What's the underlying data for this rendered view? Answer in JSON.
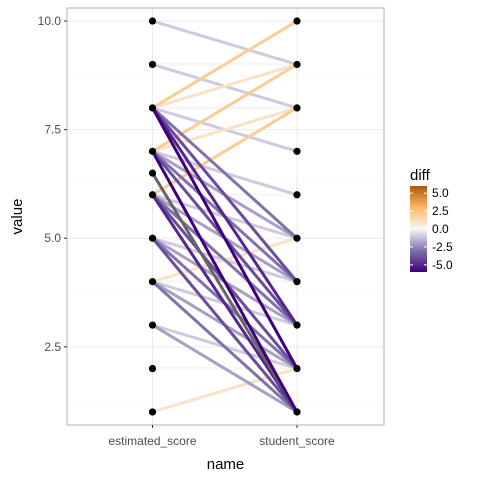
{
  "chart_data": {
    "type": "line",
    "subtype": "slopegraph",
    "title": "",
    "xlabel": "name",
    "ylabel": "value",
    "categories": [
      "estimated_score",
      "student_score"
    ],
    "ylim": [
      0.7,
      10.3
    ],
    "yticks": [
      2.5,
      5.0,
      7.5,
      10.0
    ],
    "ytick_labels": [
      "2.5",
      "5.0",
      "7.5",
      "10.0"
    ],
    "grid": true,
    "legend": {
      "title": "diff",
      "position": "right",
      "type": "colorbar",
      "range": [
        -6,
        6
      ],
      "ticks": [
        5.0,
        2.5,
        0.0,
        -2.5,
        -5.0
      ],
      "tick_labels": [
        "5.0",
        "2.5",
        "0.0",
        "-2.5",
        "-5.0"
      ],
      "colors": {
        "neg_strong": "#3f007d",
        "neg_mid": "#8073ac",
        "neutral": "#f7f7f7",
        "pos_mid": "#fdb863",
        "pos_strong": "#b35806"
      }
    },
    "highlight_color": "#666666",
    "pairs": [
      {
        "estimated": 10,
        "student": 9
      },
      {
        "estimated": 9,
        "student": 9
      },
      {
        "estimated": 9,
        "student": 8
      },
      {
        "estimated": 8,
        "student": 10
      },
      {
        "estimated": 8,
        "student": 9
      },
      {
        "estimated": 8,
        "student": 8
      },
      {
        "estimated": 8,
        "student": 7
      },
      {
        "estimated": 8,
        "student": 4
      },
      {
        "estimated": 8,
        "student": 3
      },
      {
        "estimated": 8,
        "student": 2
      },
      {
        "estimated": 8,
        "student": 5
      },
      {
        "estimated": 7,
        "student": 9
      },
      {
        "estimated": 7,
        "student": 8
      },
      {
        "estimated": 7,
        "student": 6
      },
      {
        "estimated": 7,
        "student": 5
      },
      {
        "estimated": 7,
        "student": 4
      },
      {
        "estimated": 7,
        "student": 3
      },
      {
        "estimated": 7,
        "student": 1
      },
      {
        "estimated": 6.5,
        "student": 1,
        "highlight": true
      },
      {
        "estimated": 6,
        "student": 8
      },
      {
        "estimated": 6,
        "student": 6
      },
      {
        "estimated": 6,
        "student": 5
      },
      {
        "estimated": 6,
        "student": 4
      },
      {
        "estimated": 6,
        "student": 3
      },
      {
        "estimated": 6,
        "student": 2
      },
      {
        "estimated": 6,
        "student": 1
      },
      {
        "estimated": 5,
        "student": 5
      },
      {
        "estimated": 5,
        "student": 4
      },
      {
        "estimated": 5,
        "student": 3
      },
      {
        "estimated": 5,
        "student": 2
      },
      {
        "estimated": 5,
        "student": 1
      },
      {
        "estimated": 4,
        "student": 5
      },
      {
        "estimated": 4,
        "student": 4
      },
      {
        "estimated": 4,
        "student": 3
      },
      {
        "estimated": 4,
        "student": 2
      },
      {
        "estimated": 4,
        "student": 1
      },
      {
        "estimated": 3,
        "student": 2
      },
      {
        "estimated": 3,
        "student": 1
      },
      {
        "estimated": 2,
        "student": 2
      },
      {
        "estimated": 1,
        "student": 2
      }
    ],
    "points": {
      "estimated_score": [
        10,
        9,
        8,
        7,
        6.5,
        6,
        5,
        4,
        3,
        2,
        1
      ],
      "student_score": [
        10,
        9,
        8,
        7,
        6,
        5,
        4,
        3,
        2,
        1
      ]
    }
  }
}
